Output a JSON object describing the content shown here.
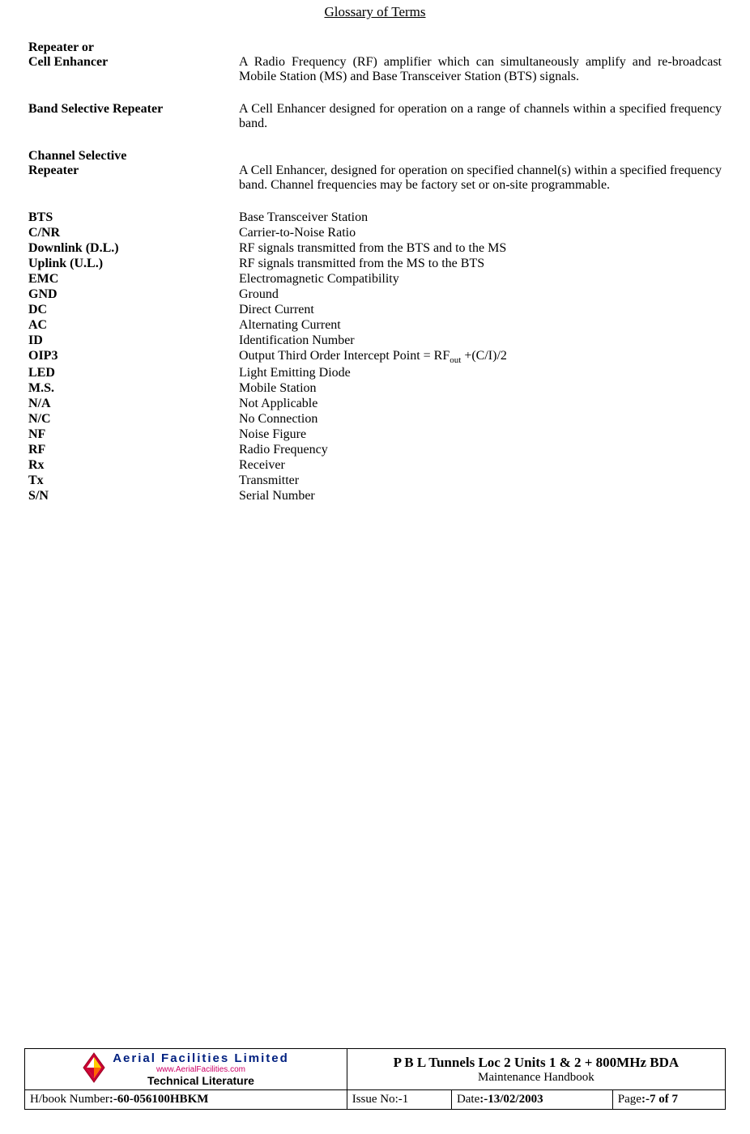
{
  "title": "Glossary of Terms",
  "entries_long": [
    {
      "term_line1": "Repeater or",
      "term_line2": "Cell Enhancer",
      "definition": "A Radio Frequency (RF) amplifier which can simultaneously amplify and re-broadcast Mobile Station (MS) and Base Transceiver Station (BTS) signals."
    },
    {
      "term_line1": "Band Selective Repeater",
      "term_line2": "",
      "definition": "A Cell Enhancer designed for operation on a range of channels within a specified frequency band."
    },
    {
      "term_line1": "Channel Selective",
      "term_line2": "Repeater",
      "definition": "A Cell Enhancer, designed for operation on specified channel(s) within a specified frequency band. Channel frequencies may be factory set or on-site programmable."
    }
  ],
  "entries_short": [
    {
      "term": "BTS",
      "def": "Base Transceiver Station"
    },
    {
      "term": "C/NR",
      "def": "Carrier-to-Noise Ratio"
    },
    {
      "term": "Downlink (D.L.)",
      "def": "RF signals transmitted from the BTS and to the MS"
    },
    {
      "term": "Uplink (U.L.)",
      "def": "RF signals transmitted from the MS to the BTS"
    },
    {
      "term": "EMC",
      "def": "Electromagnetic Compatibility"
    },
    {
      "term": "GND",
      "def": "Ground"
    },
    {
      "term": "DC",
      "def": "Direct Current"
    },
    {
      "term": "AC",
      "def": "Alternating Current"
    },
    {
      "term": "ID",
      "def": "Identification Number"
    },
    {
      "term": "OIP3",
      "def_html": "Output Third Order Intercept Point = RF<span class=\"sub\">out</span> +(C/I)/2"
    },
    {
      "term": "LED",
      "def": "Light Emitting Diode"
    },
    {
      "term": "M.S.",
      "def": "Mobile Station"
    },
    {
      "term": "N/A",
      "def": "Not Applicable"
    },
    {
      "term": "N/C",
      "def": "No Connection"
    },
    {
      "term": "NF",
      "def": "Noise Figure"
    },
    {
      "term": "RF",
      "def": "Radio Frequency"
    },
    {
      "term": "Rx",
      "def": "Receiver"
    },
    {
      "term": "Tx",
      "def": "Transmitter"
    },
    {
      "term": "S/N",
      "def": "Serial Number"
    }
  ],
  "footer": {
    "logo": {
      "line1": "Aerial Facilities Limited",
      "line2": "www.AerialFacilities.com",
      "line3": "Technical Literature"
    },
    "doc_title": "P B L Tunnels Loc 2 Units 1 & 2 + 800MHz BDA",
    "doc_subtitle": "Maintenance Handbook",
    "hbook_label": "H/book Number",
    "hbook_value": ":-60-056100HBKM",
    "issue_label": "Issue No:-1",
    "date_label": "Date",
    "date_value": ":-13/02/2003",
    "page_label": "Page",
    "page_value": ":-7 of 7"
  }
}
